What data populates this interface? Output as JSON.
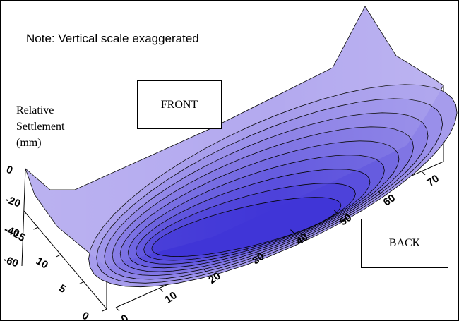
{
  "note": "Note: Vertical scale exaggerated",
  "labels": {
    "front": "FRONT",
    "back": "BACK",
    "z_axis_lines": [
      "Relative",
      "Settlement",
      "(mm)"
    ]
  },
  "colors": {
    "surface_light": "#b3a9ef",
    "surface_dark": "#3a2fd6",
    "contour_line": "#000000"
  },
  "chart_data": {
    "type": "surface",
    "title": "",
    "xlabel": "",
    "ylabel": "",
    "zlabel": "Relative Settlement (mm)",
    "x_ticks": [
      "0",
      "10",
      "20",
      "30",
      "40",
      "50",
      "60",
      "70"
    ],
    "y_ticks": [
      "0",
      "5",
      "10",
      "15"
    ],
    "z_ticks": [
      "0",
      "-20",
      "-40",
      "-60"
    ],
    "xlim": [
      0,
      75
    ],
    "ylim": [
      0,
      18
    ],
    "zlim": [
      -65,
      0
    ],
    "max_settlement": -45,
    "contour_levels": [
      -5,
      -10,
      -15,
      -20,
      -25,
      -30,
      -35,
      -40,
      -45
    ],
    "grid": false,
    "legend": "none"
  }
}
